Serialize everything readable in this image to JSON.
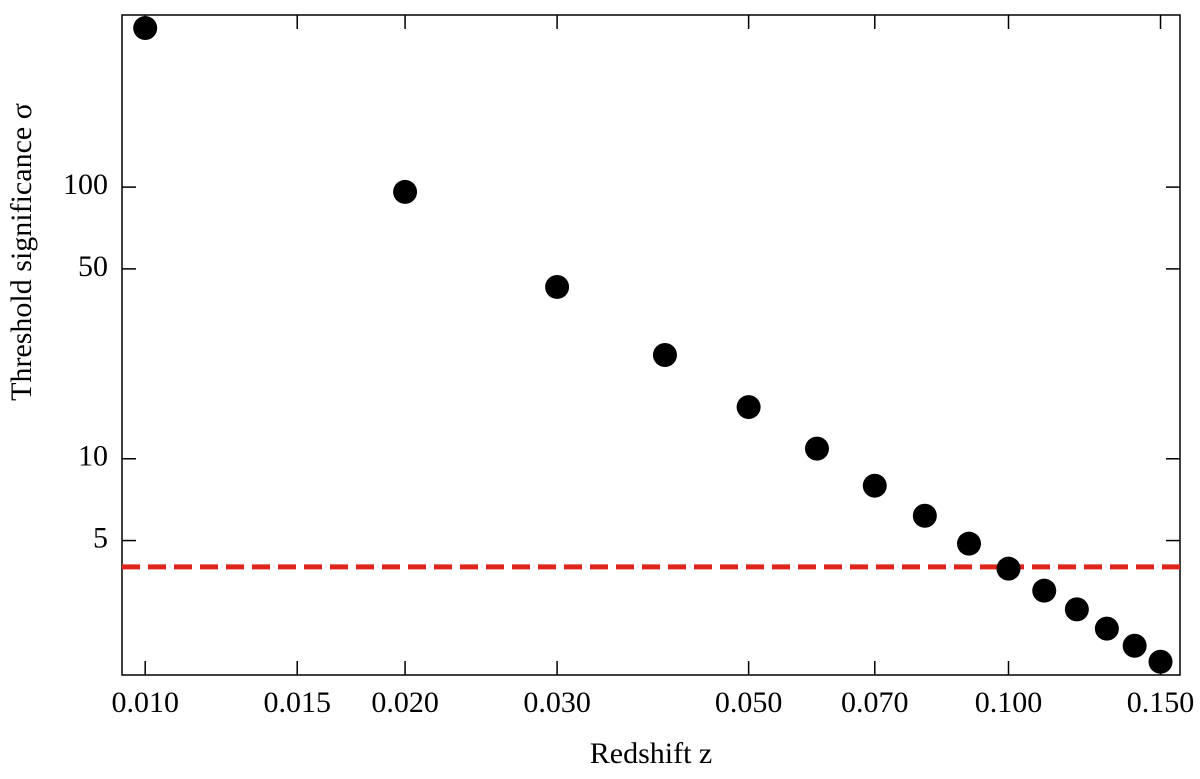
{
  "chart_data": {
    "type": "scatter",
    "x_label": "Redshift z",
    "y_label": "Threshold significance σ",
    "x": [
      0.01,
      0.02,
      0.03,
      0.04,
      0.05,
      0.06,
      0.07,
      0.08,
      0.09,
      0.1,
      0.11,
      0.12,
      0.13,
      0.14,
      0.15
    ],
    "values": [
      385,
      96,
      42.9,
      24.1,
      15.5,
      10.9,
      7.96,
      6.17,
      4.87,
      3.94,
      3.27,
      2.79,
      2.37,
      2.05,
      1.79
    ],
    "color": "#000000",
    "threshold": 4,
    "threshold_color": "#e0241b",
    "xlog": true,
    "ylog": true,
    "xlim": [
      0.0094,
      0.158
    ],
    "ylim": [
      1.6,
      430
    ],
    "xticks": [
      {
        "value": 0.01,
        "label": "0.010"
      },
      {
        "value": 0.015,
        "label": "0.015"
      },
      {
        "value": 0.02,
        "label": "0.020"
      },
      {
        "value": 0.03,
        "label": "0.030"
      },
      {
        "value": 0.05,
        "label": "0.050"
      },
      {
        "value": 0.07,
        "label": "0.070"
      },
      {
        "value": 0.1,
        "label": "0.100"
      },
      {
        "value": 0.15,
        "label": "0.150"
      }
    ],
    "yticks": [
      5,
      10,
      50,
      100
    ]
  }
}
